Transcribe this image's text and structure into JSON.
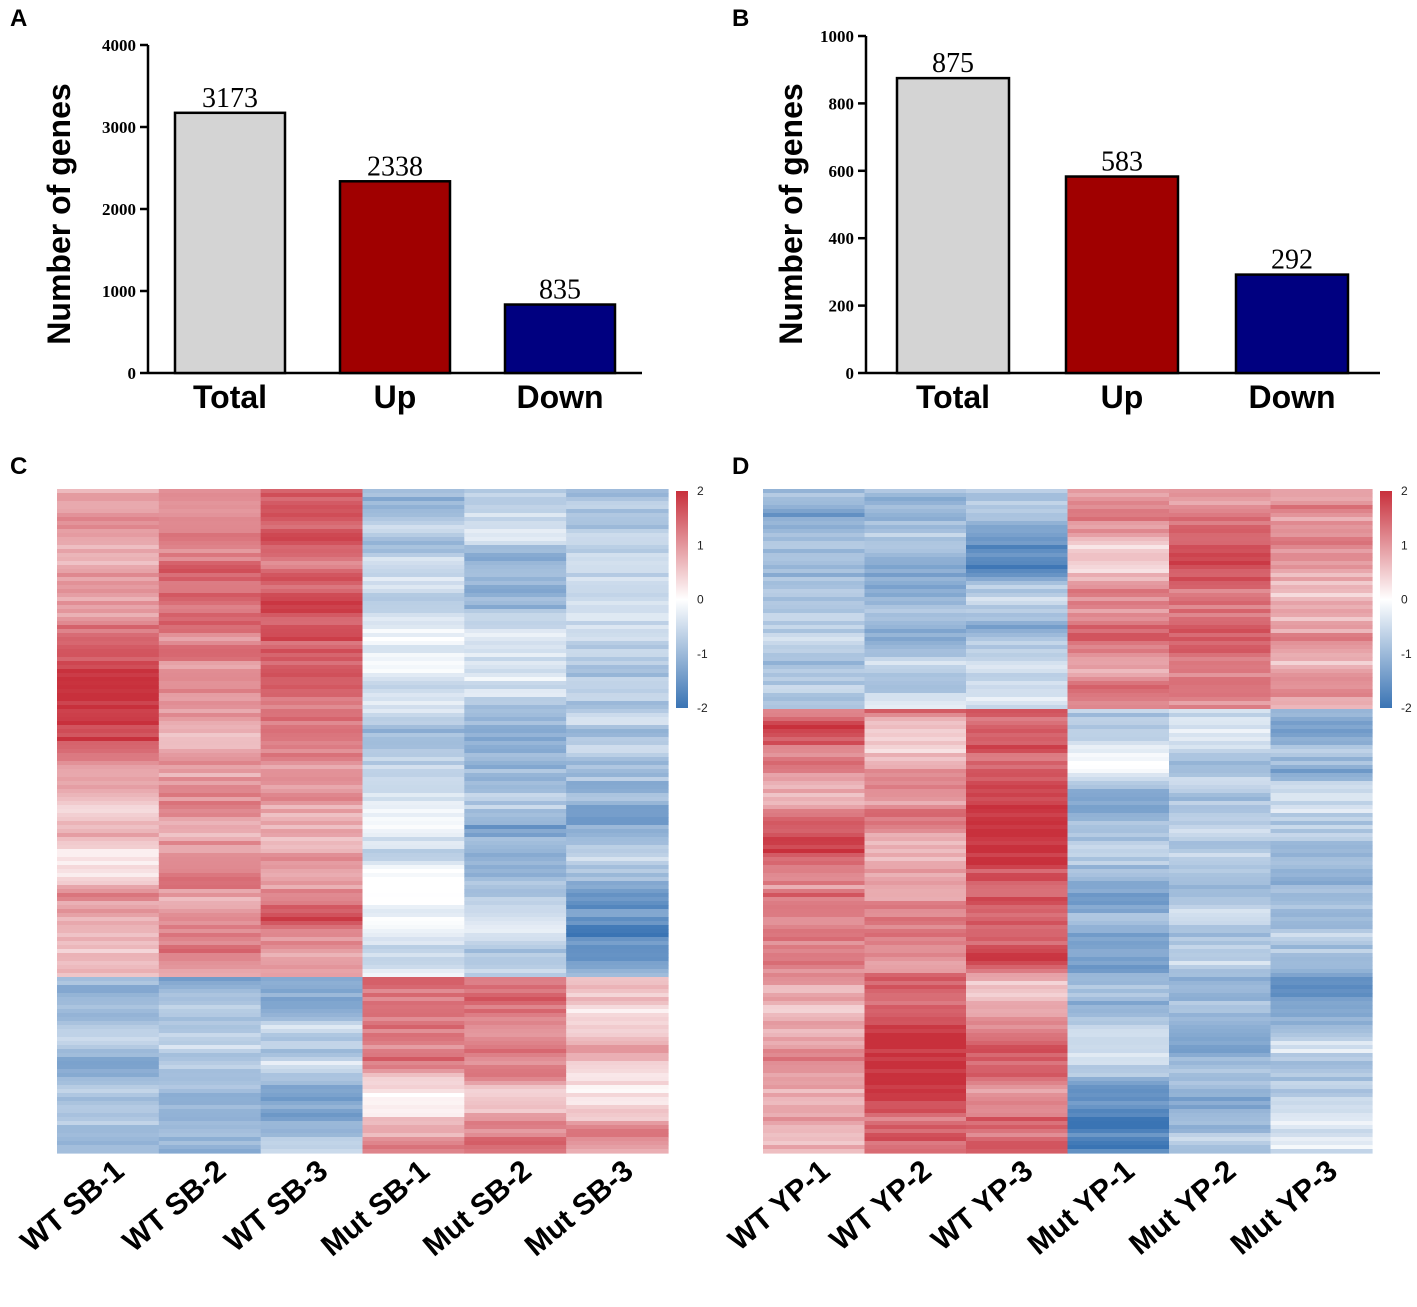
{
  "panels": {
    "a": "A",
    "b": "B",
    "c": "C",
    "d": "D"
  },
  "colors": {
    "total": "#d4d4d4",
    "up": "#a00000",
    "down": "#000080",
    "axis": "#000000",
    "hm_high": "#c8303c",
    "hm_mid": "#ffffff",
    "hm_low": "#3a74b4"
  },
  "chart_data": [
    {
      "type": "bar",
      "panel": "A",
      "ylabel": "Number of genes",
      "xlabel": "",
      "categories": [
        "Total",
        "Up",
        "Down"
      ],
      "values": [
        3173,
        2338,
        835
      ],
      "value_labels": [
        "3173",
        "2338",
        "835"
      ],
      "ylim": [
        0,
        4000
      ],
      "yticks": [
        0,
        1000,
        2000,
        3000,
        4000
      ],
      "ytick_labels": [
        "0",
        "1000",
        "2000",
        "3000",
        "4000"
      ]
    },
    {
      "type": "bar",
      "panel": "B",
      "ylabel": "Number of genes",
      "xlabel": "",
      "categories": [
        "Total",
        "Up",
        "Down"
      ],
      "values": [
        875,
        583,
        292
      ],
      "value_labels": [
        "875",
        "583",
        "292"
      ],
      "ylim": [
        0,
        1000
      ],
      "yticks": [
        0,
        200,
        400,
        600,
        800,
        1000
      ],
      "ytick_labels": [
        "0",
        "200",
        "400",
        "600",
        "800",
        "1000"
      ]
    },
    {
      "type": "heatmap",
      "panel": "C",
      "columns": [
        "WT SB-1",
        "WT SB-2",
        "WT SB-3",
        "Mut SB-1",
        "Mut SB-2",
        "Mut SB-3"
      ],
      "colorbar": {
        "min": -2,
        "max": 2,
        "ticks": [
          "2",
          "1",
          "0",
          "-1",
          "-2"
        ]
      },
      "blocks": [
        {
          "fraction": 0.737,
          "means": [
            1.1,
            1.0,
            1.4,
            -0.95,
            -0.95,
            -0.8
          ]
        },
        {
          "fraction": 0.263,
          "means": [
            -0.9,
            -0.9,
            -0.9,
            1.0,
            1.2,
            1.0
          ]
        }
      ]
    },
    {
      "type": "heatmap",
      "panel": "D",
      "columns": [
        "WT YP-1",
        "WT YP-2",
        "WT YP-3",
        "Mut YP-1",
        "Mut YP-2",
        "Mut YP-3"
      ],
      "colorbar": {
        "min": -2,
        "max": 2,
        "ticks": [
          "2",
          "1",
          "0",
          "-1",
          "-2"
        ]
      },
      "blocks": [
        {
          "fraction": 0.333,
          "means": [
            -1.0,
            -0.95,
            -0.9,
            1.1,
            1.1,
            1.0
          ]
        },
        {
          "fraction": 0.667,
          "means": [
            1.1,
            1.0,
            1.3,
            -1.0,
            -0.8,
            -0.8
          ]
        }
      ]
    }
  ]
}
